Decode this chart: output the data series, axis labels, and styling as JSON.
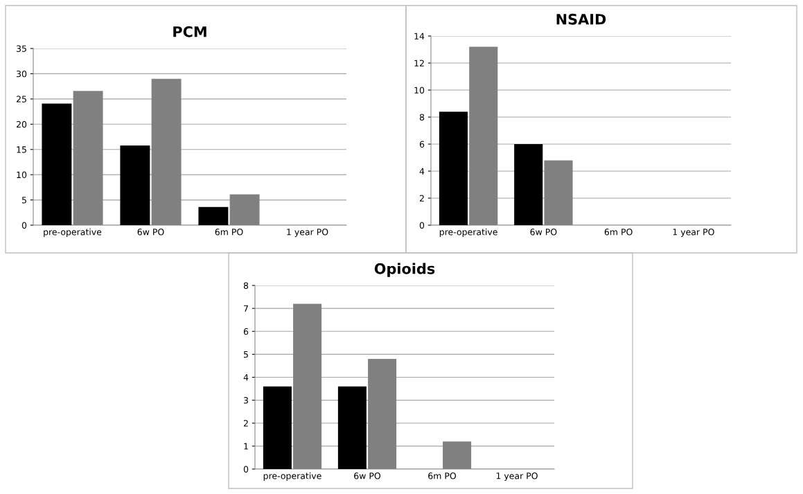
{
  "chart_data": [
    {
      "type": "bar",
      "title": "PCM",
      "categories": [
        "pre-operative",
        "6w PO",
        "6m PO",
        "1 year PO"
      ],
      "ylim": [
        0,
        35
      ],
      "yticks": [
        0,
        5,
        10,
        15,
        20,
        25,
        30,
        35
      ],
      "grid": "y",
      "series": [
        {
          "color": "#000000",
          "values": [
            24.1,
            15.8,
            3.6,
            0
          ]
        },
        {
          "color": "#808080",
          "values": [
            26.6,
            29.0,
            6.1,
            0
          ]
        }
      ]
    },
    {
      "type": "bar",
      "title": "NSAID",
      "categories": [
        "pre-operative",
        "6w PO",
        "6m PO",
        "1 year PO"
      ],
      "ylim": [
        0,
        14
      ],
      "yticks": [
        0,
        2,
        4,
        6,
        8,
        10,
        12,
        14
      ],
      "grid": "y",
      "series": [
        {
          "color": "#000000",
          "values": [
            8.4,
            6.0,
            0,
            0
          ]
        },
        {
          "color": "#808080",
          "values": [
            13.2,
            4.8,
            0,
            0
          ]
        }
      ]
    },
    {
      "type": "bar",
      "title": "Opioids",
      "categories": [
        "pre-operative",
        "6w PO",
        "6m PO",
        "1 year PO"
      ],
      "ylim": [
        0,
        8
      ],
      "yticks": [
        0,
        1,
        2,
        3,
        4,
        5,
        6,
        7,
        8
      ],
      "grid": "y",
      "series": [
        {
          "color": "#000000",
          "values": [
            3.6,
            3.6,
            0,
            0
          ]
        },
        {
          "color": "#808080",
          "values": [
            7.2,
            4.8,
            1.2,
            0
          ]
        }
      ]
    }
  ]
}
